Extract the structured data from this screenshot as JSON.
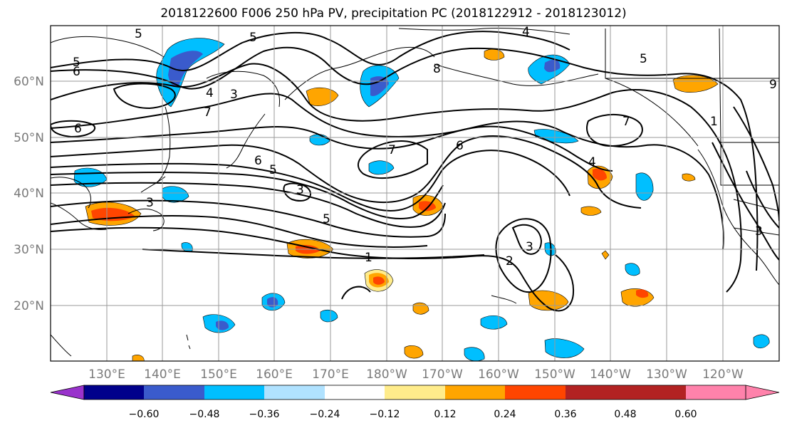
{
  "title": "2018122600 F006 250 hPa PV, precipitation PC (2018122912 - 2018123012)",
  "lat_labels": [
    "60°N",
    "50°N",
    "40°N",
    "30°N",
    "20°N"
  ],
  "lon_labels": [
    "130°E",
    "140°E",
    "150°E",
    "160°E",
    "170°E",
    "180°W",
    "170°W",
    "160°W",
    "150°W",
    "140°W",
    "130°W",
    "120°W"
  ],
  "colorbar": {
    "ticks": [
      "−0.60",
      "−0.48",
      "−0.36",
      "−0.24",
      "−0.12",
      "0.12",
      "0.24",
      "0.36",
      "0.48",
      "0.60"
    ],
    "colors": [
      "#9932cc",
      "#00008b",
      "#3a5bcc",
      "#00bfff",
      "#b0e2ff",
      "#ffffff",
      "#ffec8b",
      "#ffa500",
      "#ff4500",
      "#b22222",
      "#ff82ab"
    ]
  },
  "contour_labels": [
    "5",
    "5",
    "5",
    "6",
    "4",
    "3",
    "7",
    "6",
    "4",
    "5",
    "8",
    "7",
    "6",
    "5",
    "6",
    "7",
    "4",
    "9",
    "3",
    "5",
    "3",
    "1",
    "2",
    "3",
    "3",
    "1"
  ]
}
